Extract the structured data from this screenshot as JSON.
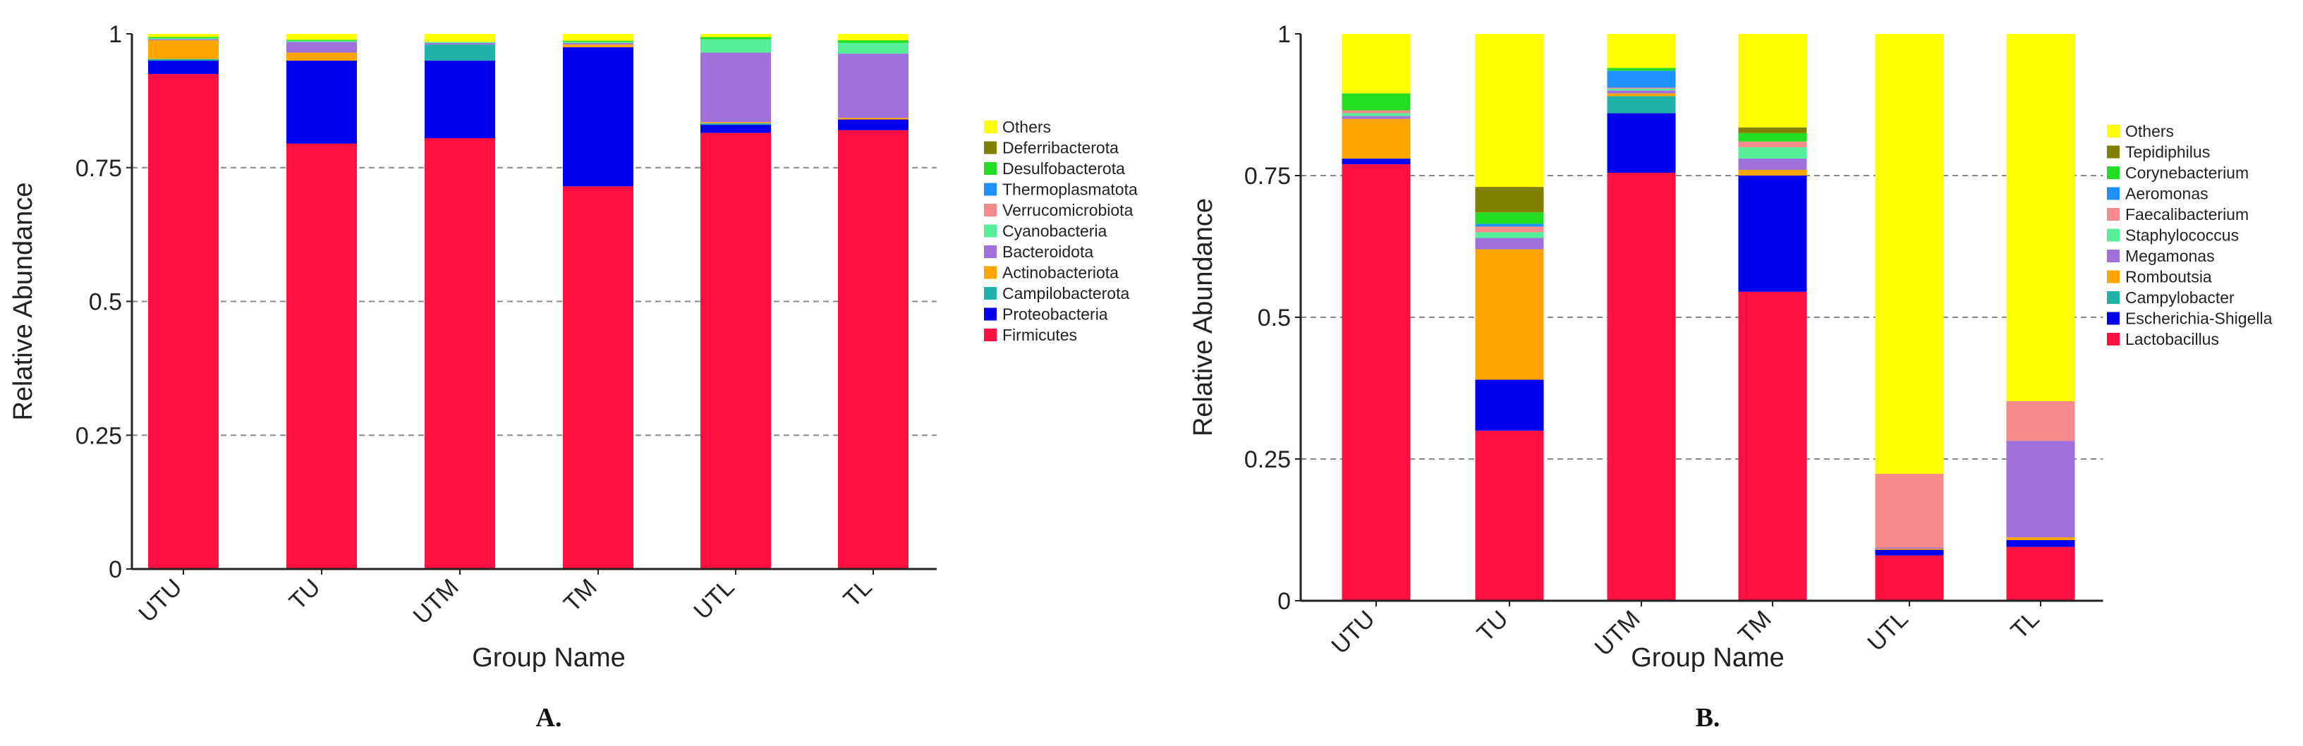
{
  "colors": {
    "Others": "#ffff00",
    "Deferribacterota": "#808000",
    "Desulfobacterota": "#22dd22",
    "Thermoplasmatota": "#1e90ff",
    "Verrucomicrobiota": "#f78a8a",
    "Cyanobacteria": "#55ee99",
    "Bacteroidota": "#a070dd",
    "Actinobacteriota": "#ffa500",
    "Campilobacterota": "#20b2aa",
    "Proteobacteria": "#0000ee",
    "Firmicutes": "#ff1040",
    "Tepidiphilus": "#808000",
    "Corynebacterium": "#22dd22",
    "Aeromonas": "#1e90ff",
    "Faecalibacterium": "#f78a8a",
    "Staphylococcus": "#55ee99",
    "Megamonas": "#a070dd",
    "Romboutsia": "#ffa500",
    "Campylobacter": "#20b2aa",
    "Escherichia-Shigella": "#0000ee",
    "Lactobacillus": "#ff1040"
  },
  "chart_data": [
    {
      "type": "bar",
      "stacked": true,
      "panel_label": "A.",
      "xlabel": "Group Name",
      "ylabel": "Relative Abundance",
      "ylim": [
        0,
        1
      ],
      "yticks": [
        0,
        0.25,
        0.5,
        0.75,
        1
      ],
      "ytick_labels": [
        "0",
        "0.25",
        "0.5",
        "0.75",
        "1"
      ],
      "grid": "dashed horizontal",
      "categories": [
        "UTU",
        "TU",
        "UTM",
        "TM",
        "UTL",
        "TL"
      ],
      "legend": [
        "Others",
        "Deferribacterota",
        "Desulfobacterota",
        "Thermoplasmatota",
        "Verrucomicrobiota",
        "Cyanobacteria",
        "Bacteroidota",
        "Actinobacteriota",
        "Campilobacterota",
        "Proteobacteria",
        "Firmicutes"
      ],
      "series": [
        {
          "name": "Firmicutes",
          "values": [
            0.925,
            0.795,
            0.805,
            0.715,
            0.815,
            0.82
          ]
        },
        {
          "name": "Proteobacteria",
          "values": [
            0.025,
            0.155,
            0.145,
            0.26,
            0.015,
            0.02
          ]
        },
        {
          "name": "Campilobacterota",
          "values": [
            0.003,
            0.0,
            0.03,
            0.0,
            0.003,
            0.0
          ]
        },
        {
          "name": "Actinobacteriota",
          "values": [
            0.035,
            0.015,
            0.0,
            0.005,
            0.002,
            0.003
          ]
        },
        {
          "name": "Bacteroidota",
          "values": [
            0.002,
            0.02,
            0.003,
            0.003,
            0.13,
            0.12
          ]
        },
        {
          "name": "Cyanobacteria",
          "values": [
            0.002,
            0.002,
            0.002,
            0.002,
            0.025,
            0.02
          ]
        },
        {
          "name": "Verrucomicrobiota",
          "values": [
            0.0,
            0.0,
            0.0,
            0.0,
            0.0,
            0.0
          ]
        },
        {
          "name": "Thermoplasmatota",
          "values": [
            0.0,
            0.0,
            0.0,
            0.0,
            0.0,
            0.0
          ]
        },
        {
          "name": "Desulfobacterota",
          "values": [
            0.002,
            0.002,
            0.0,
            0.002,
            0.004,
            0.005
          ]
        },
        {
          "name": "Deferribacterota",
          "values": [
            0.0,
            0.0,
            0.0,
            0.0,
            0.0,
            0.0
          ]
        },
        {
          "name": "Others",
          "values": [
            0.006,
            0.011,
            0.015,
            0.013,
            0.006,
            0.012
          ]
        }
      ]
    },
    {
      "type": "bar",
      "stacked": true,
      "panel_label": "B.",
      "xlabel": "Group Name",
      "ylabel": "Relative Abundance",
      "ylim": [
        0,
        1
      ],
      "yticks": [
        0,
        0.25,
        0.5,
        0.75,
        1
      ],
      "ytick_labels": [
        "0",
        "0.25",
        "0.5",
        "0.75",
        "1"
      ],
      "grid": "dashed horizontal",
      "categories": [
        "UTU",
        "TU",
        "UTM",
        "TM",
        "UTL",
        "TL"
      ],
      "legend": [
        "Others",
        "Tepidiphilus",
        "Corynebacterium",
        "Aeromonas",
        "Faecalibacterium",
        "Staphylococcus",
        "Megamonas",
        "Romboutsia",
        "Campylobacter",
        "Escherichia-Shigella",
        "Lactobacillus"
      ],
      "series": [
        {
          "name": "Lactobacillus",
          "values": [
            0.77,
            0.3,
            0.755,
            0.545,
            0.08,
            0.095
          ]
        },
        {
          "name": "Escherichia-Shigella",
          "values": [
            0.01,
            0.09,
            0.105,
            0.205,
            0.01,
            0.012
          ]
        },
        {
          "name": "Campylobacter",
          "values": [
            0.0,
            0.0,
            0.03,
            0.0,
            0.0,
            0.0
          ]
        },
        {
          "name": "Romboutsia",
          "values": [
            0.07,
            0.23,
            0.005,
            0.01,
            0.002,
            0.005
          ]
        },
        {
          "name": "Megamonas",
          "values": [
            0.005,
            0.02,
            0.005,
            0.02,
            0.002,
            0.17
          ]
        },
        {
          "name": "Staphylococcus",
          "values": [
            0.005,
            0.01,
            0.003,
            0.02,
            0.0,
            0.0
          ]
        },
        {
          "name": "Faecalibacterium",
          "values": [
            0.005,
            0.01,
            0.002,
            0.01,
            0.13,
            0.07
          ]
        },
        {
          "name": "Aeromonas",
          "values": [
            0.0,
            0.005,
            0.03,
            0.0,
            0.0,
            0.0
          ]
        },
        {
          "name": "Corynebacterium",
          "values": [
            0.03,
            0.02,
            0.005,
            0.015,
            0.0,
            0.0
          ]
        },
        {
          "name": "Tepidiphilus",
          "values": [
            0.0,
            0.045,
            0.0,
            0.01,
            0.0,
            0.0
          ]
        },
        {
          "name": "Others",
          "values": [
            0.105,
            0.27,
            0.06,
            0.165,
            0.776,
            0.648
          ]
        }
      ]
    }
  ]
}
